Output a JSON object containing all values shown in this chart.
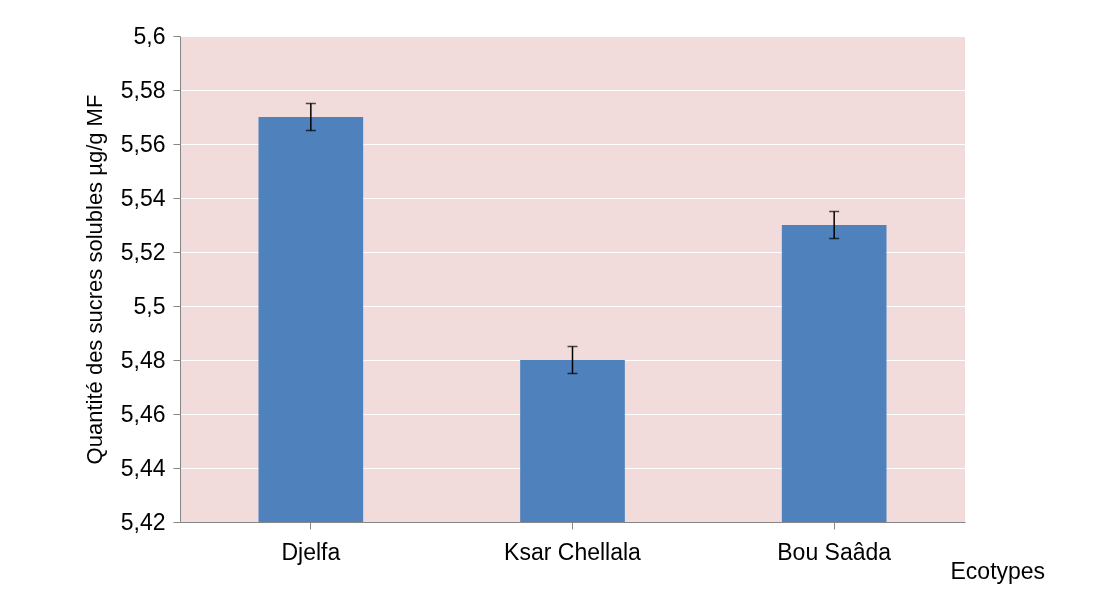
{
  "chart_data": {
    "type": "bar",
    "xlabel": "Ecotypes",
    "ylabel": "Quantité des sucres solubles µg/g MF",
    "categories": [
      "Djelfa",
      "Ksar Chellala",
      "Bou Saâda"
    ],
    "values": [
      5.57,
      5.48,
      5.53
    ],
    "errors": [
      0.005,
      0.005,
      0.005
    ],
    "color": "#4f81bd",
    "ylim": [
      5.42,
      5.6
    ],
    "yticks": [
      {
        "value": 5.42,
        "label": "5,42"
      },
      {
        "value": 5.44,
        "label": "5,44"
      },
      {
        "value": 5.46,
        "label": "5,46"
      },
      {
        "value": 5.48,
        "label": "5,48"
      },
      {
        "value": 5.5,
        "label": "5,5"
      },
      {
        "value": 5.52,
        "label": "5,52"
      },
      {
        "value": 5.54,
        "label": "5,54"
      },
      {
        "value": 5.56,
        "label": "5,56"
      },
      {
        "value": 5.58,
        "label": "5,58"
      },
      {
        "value": 5.6,
        "label": "5,6"
      }
    ],
    "grid": "y"
  }
}
